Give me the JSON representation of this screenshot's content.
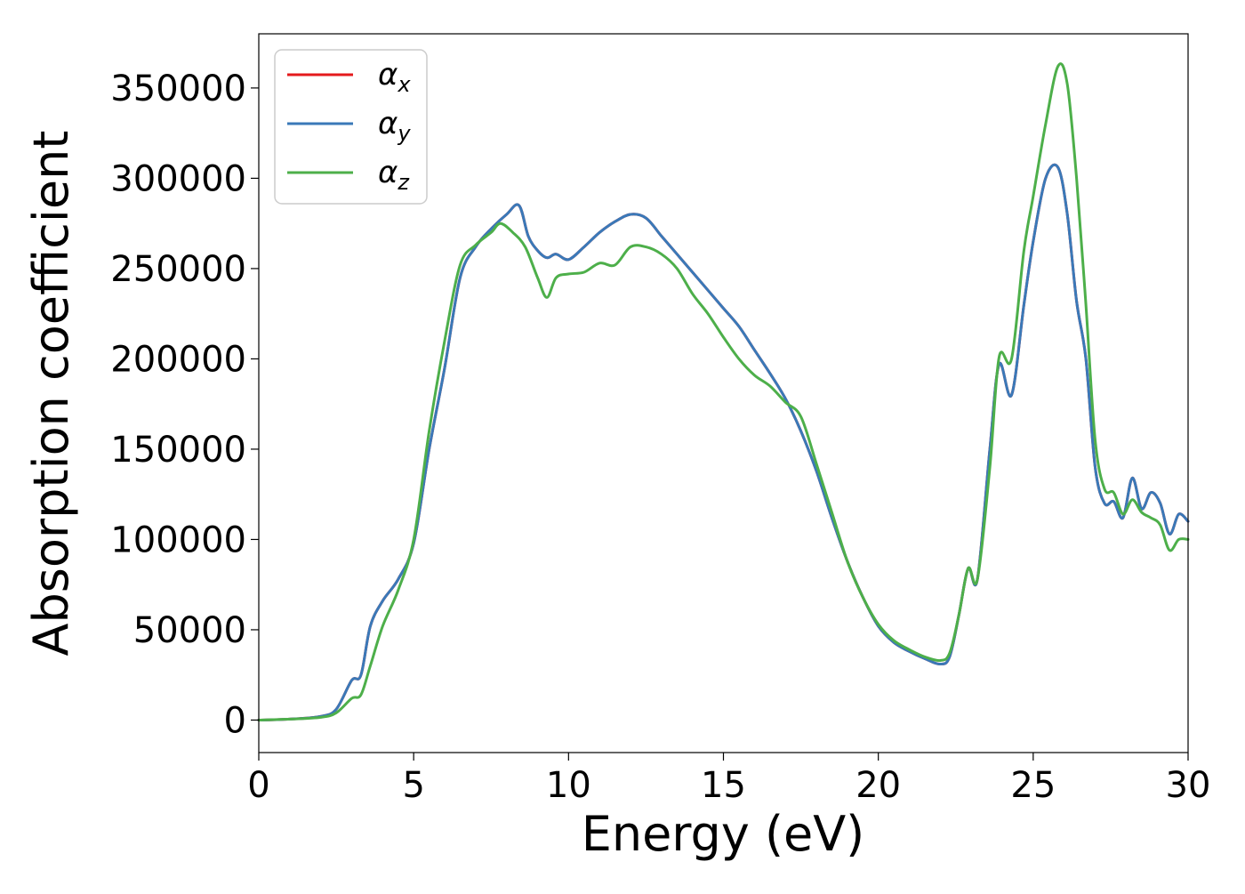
{
  "chart_data": {
    "type": "line",
    "title": "",
    "xlabel": "Energy (eV)",
    "ylabel": "Absorption coefficient",
    "xlim": [
      0,
      30
    ],
    "ylim": [
      -18000,
      380000
    ],
    "xticks": [
      0,
      5,
      10,
      15,
      20,
      25,
      30
    ],
    "xtick_labels": [
      "0",
      "5",
      "10",
      "15",
      "20",
      "25",
      "30"
    ],
    "yticks": [
      0,
      50000,
      100000,
      150000,
      200000,
      250000,
      300000,
      350000
    ],
    "ytick_labels": [
      "0",
      "50000",
      "100000",
      "150000",
      "200000",
      "250000",
      "300000",
      "350000"
    ],
    "grid": false,
    "legend_position": "top-left",
    "series": [
      {
        "name": "α",
        "subscript": "x",
        "color": "#e41a1c",
        "x": [
          0,
          1,
          2,
          2.5,
          3,
          3.3,
          3.6,
          4,
          4.5,
          5,
          5.5,
          6,
          6.5,
          7,
          7.5,
          8,
          8.4,
          8.7,
          9,
          9.3,
          9.6,
          10,
          10.5,
          11,
          11.5,
          12,
          12.5,
          13,
          13.5,
          14,
          14.5,
          15,
          15.5,
          16,
          16.5,
          17,
          17.5,
          18,
          18.5,
          19,
          19.5,
          20,
          20.5,
          21,
          21.5,
          22,
          22.3,
          22.6,
          22.9,
          23.2,
          23.6,
          23.9,
          24.3,
          24.7,
          25,
          25.4,
          25.8,
          26.1,
          26.4,
          26.7,
          27,
          27.3,
          27.6,
          27.9,
          28.2,
          28.5,
          28.8,
          29.1,
          29.4,
          29.7,
          30
        ],
        "values": [
          0,
          500,
          2000,
          6000,
          22000,
          25000,
          52000,
          66000,
          78000,
          98000,
          150000,
          195000,
          245000,
          262000,
          272000,
          280000,
          285000,
          268000,
          260000,
          256000,
          258000,
          255000,
          262000,
          270000,
          276000,
          280000,
          278000,
          268000,
          258000,
          248000,
          238000,
          228000,
          218000,
          205000,
          192000,
          178000,
          160000,
          138000,
          112000,
          88000,
          68000,
          52000,
          43000,
          38000,
          34000,
          31000,
          35000,
          58000,
          84000,
          78000,
          150000,
          197000,
          180000,
          230000,
          265000,
          300000,
          306000,
          280000,
          232000,
          200000,
          140000,
          120000,
          121000,
          112000,
          134000,
          117000,
          126000,
          120000,
          103000,
          114000,
          110000
        ]
      },
      {
        "name": "α",
        "subscript": "y",
        "color": "#3a79b8",
        "x": [
          0,
          1,
          2,
          2.5,
          3,
          3.3,
          3.6,
          4,
          4.5,
          5,
          5.5,
          6,
          6.5,
          7,
          7.5,
          8,
          8.4,
          8.7,
          9,
          9.3,
          9.6,
          10,
          10.5,
          11,
          11.5,
          12,
          12.5,
          13,
          13.5,
          14,
          14.5,
          15,
          15.5,
          16,
          16.5,
          17,
          17.5,
          18,
          18.5,
          19,
          19.5,
          20,
          20.5,
          21,
          21.5,
          22,
          22.3,
          22.6,
          22.9,
          23.2,
          23.6,
          23.9,
          24.3,
          24.7,
          25,
          25.4,
          25.8,
          26.1,
          26.4,
          26.7,
          27,
          27.3,
          27.6,
          27.9,
          28.2,
          28.5,
          28.8,
          29.1,
          29.4,
          29.7,
          30
        ],
        "values": [
          0,
          500,
          2000,
          6000,
          22000,
          25000,
          52000,
          66000,
          78000,
          98000,
          150000,
          195000,
          245000,
          262000,
          272000,
          280000,
          285000,
          268000,
          260000,
          256000,
          258000,
          255000,
          262000,
          270000,
          276000,
          280000,
          278000,
          268000,
          258000,
          248000,
          238000,
          228000,
          218000,
          205000,
          192000,
          178000,
          160000,
          138000,
          112000,
          88000,
          68000,
          52000,
          43000,
          38000,
          34000,
          31000,
          35000,
          58000,
          84000,
          78000,
          150000,
          197000,
          180000,
          230000,
          265000,
          300000,
          306000,
          280000,
          232000,
          200000,
          140000,
          120000,
          121000,
          112000,
          134000,
          117000,
          126000,
          120000,
          103000,
          114000,
          110000
        ]
      },
      {
        "name": "α",
        "subscript": "z",
        "color": "#4daf4a",
        "x": [
          0,
          1,
          2,
          2.5,
          3,
          3.3,
          3.6,
          4,
          4.5,
          5,
          5.5,
          6,
          6.5,
          7,
          7.5,
          7.8,
          8.2,
          8.6,
          9,
          9.3,
          9.6,
          10,
          10.5,
          11,
          11.5,
          12,
          12.5,
          13,
          13.5,
          14,
          14.5,
          15,
          15.5,
          16,
          16.5,
          17,
          17.5,
          18,
          18.5,
          19,
          19.5,
          20,
          20.5,
          21,
          21.5,
          22,
          22.3,
          22.6,
          22.9,
          23.2,
          23.6,
          23.9,
          24.3,
          24.7,
          25,
          25.4,
          25.8,
          26.1,
          26.4,
          26.7,
          27,
          27.3,
          27.6,
          27.9,
          28.2,
          28.5,
          28.8,
          29.1,
          29.4,
          29.7,
          30
        ],
        "values": [
          0,
          500,
          1500,
          4000,
          12000,
          14000,
          30000,
          52000,
          72000,
          100000,
          160000,
          210000,
          252000,
          263000,
          270000,
          275000,
          270000,
          262000,
          245000,
          234000,
          245000,
          247000,
          248000,
          253000,
          252000,
          262000,
          262000,
          258000,
          250000,
          236000,
          225000,
          212000,
          200000,
          191000,
          185000,
          176000,
          168000,
          142000,
          115000,
          88000,
          68000,
          53000,
          44000,
          39000,
          35000,
          33000,
          37000,
          58000,
          84000,
          78000,
          140000,
          201000,
          200000,
          260000,
          290000,
          330000,
          362000,
          352000,
          300000,
          230000,
          155000,
          128000,
          126000,
          114000,
          122000,
          115000,
          112000,
          108000,
          94000,
          100000,
          100000
        ]
      }
    ]
  }
}
